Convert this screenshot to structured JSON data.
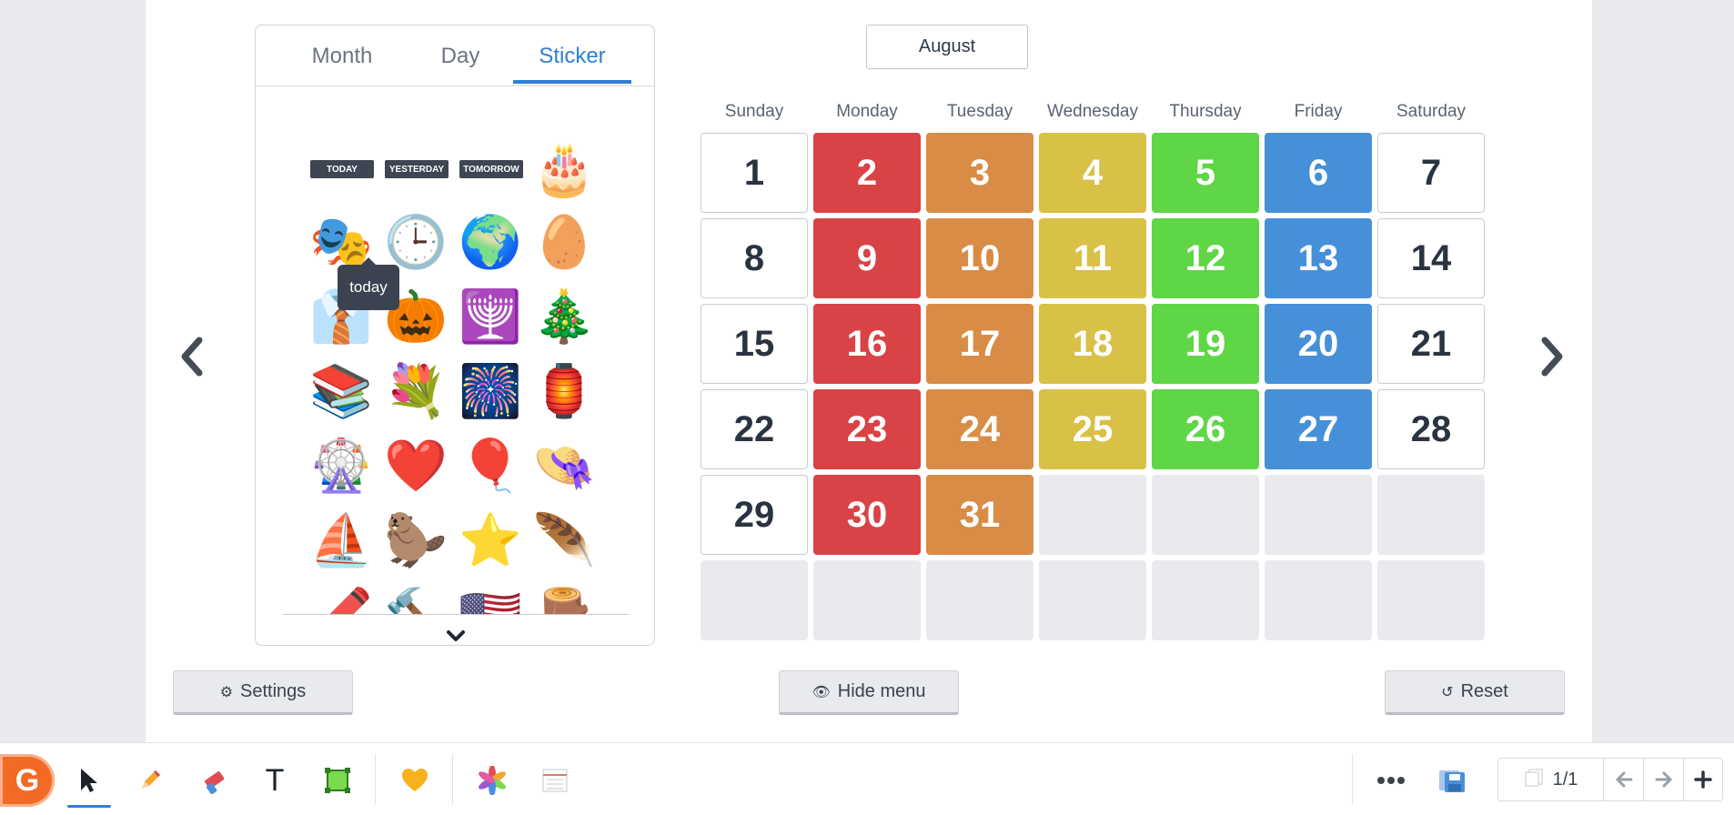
{
  "tabs": {
    "month": "Month",
    "day": "Day",
    "sticker": "Sticker"
  },
  "stickers": {
    "chips": {
      "today": "TODAY",
      "yesterday": "YESTERDAY",
      "tomorrow": "TOMORROW"
    },
    "tooltip": "today",
    "emojis": [
      "🎂",
      "🎭",
      "🕒",
      "🌍",
      "🥚",
      "👔",
      "🎃",
      "🕎",
      "🎄",
      "📚",
      "💐",
      "🎆",
      "🏮",
      "🎡",
      "❤️",
      "🎈",
      "👒",
      "⛵",
      "🦫",
      "⭐",
      "🪶",
      "🖍️",
      "🔨",
      "🇺🇸",
      "🪵"
    ]
  },
  "calendar": {
    "month": "August",
    "days": [
      "Sunday",
      "Monday",
      "Tuesday",
      "Wednesday",
      "Thursday",
      "Friday",
      "Saturday"
    ],
    "weeks": [
      [
        "1",
        "2",
        "3",
        "4",
        "5",
        "6",
        "7"
      ],
      [
        "8",
        "9",
        "10",
        "11",
        "12",
        "13",
        "14"
      ],
      [
        "15",
        "16",
        "17",
        "18",
        "19",
        "20",
        "21"
      ],
      [
        "22",
        "23",
        "24",
        "25",
        "26",
        "27",
        "28"
      ],
      [
        "29",
        "30",
        "31",
        "",
        "",
        "",
        ""
      ],
      [
        "",
        "",
        "",
        "",
        "",
        "",
        ""
      ]
    ],
    "weekday_colors": {
      "Monday": "#d94346",
      "Tuesday": "#d98c46",
      "Wednesday": "#d9c046",
      "Thursday": "#5fd646",
      "Friday": "#4690d9"
    }
  },
  "buttons": {
    "settings": "Settings",
    "hide_menu": "Hide menu",
    "reset": "Reset"
  },
  "toolbar": {
    "logo": "G",
    "text_tool": "T",
    "page_indicator": "1/1"
  }
}
